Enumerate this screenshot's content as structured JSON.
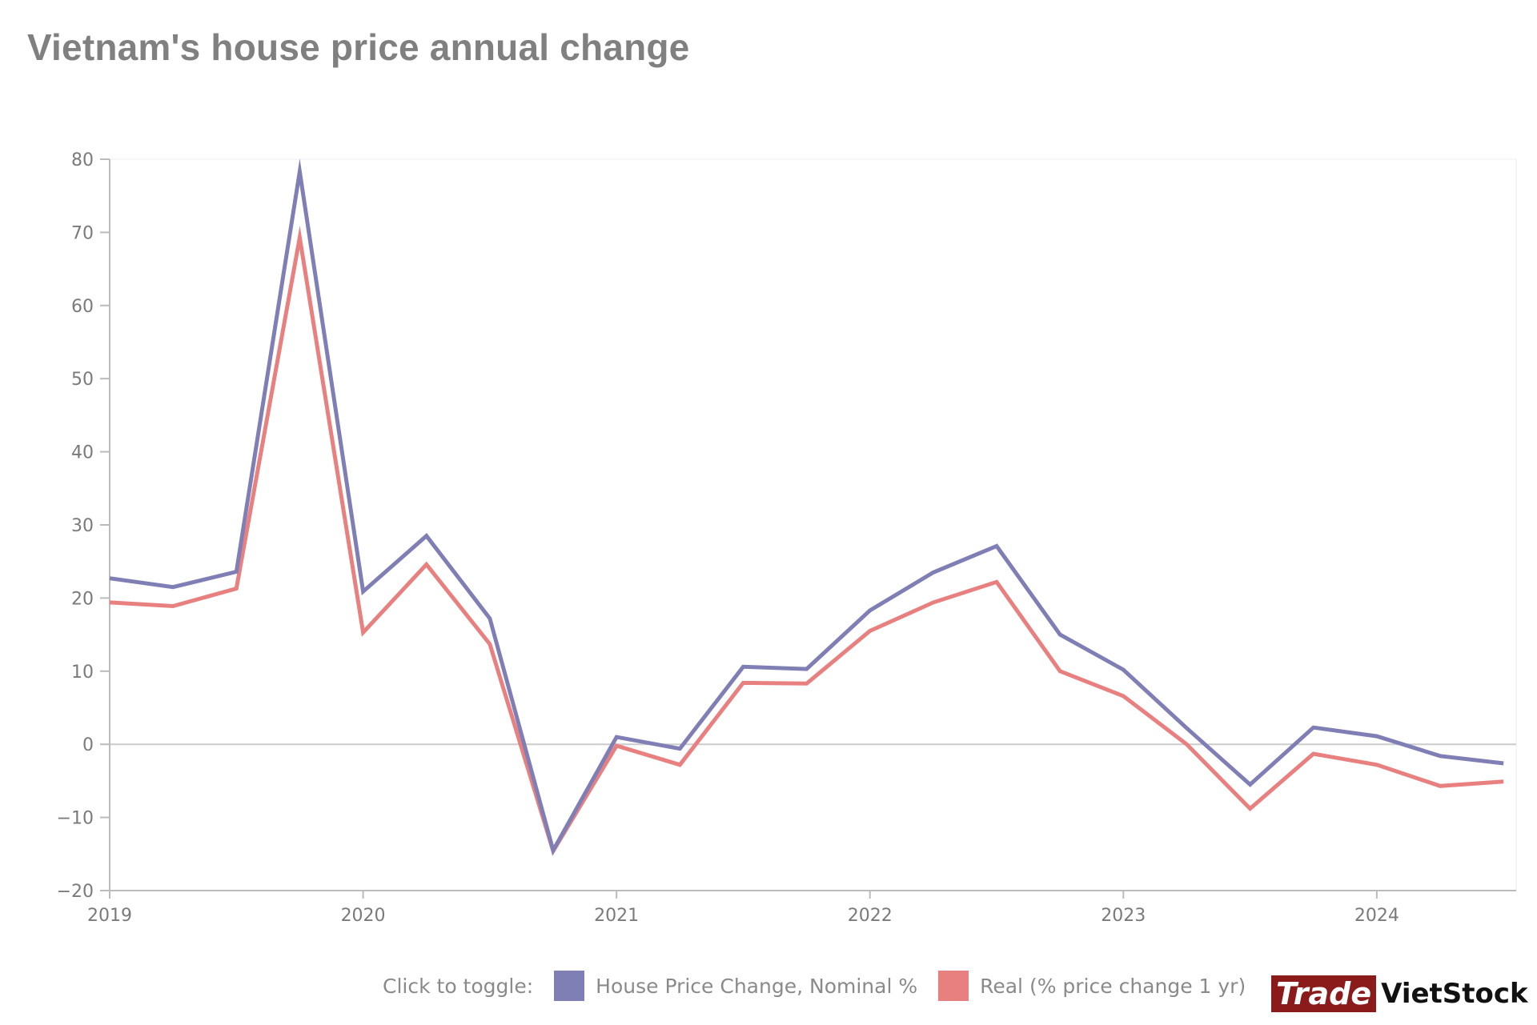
{
  "title": "Vietnam's house price annual change",
  "legend": {
    "hint": "Click to toggle:",
    "items": [
      {
        "label": "House Price Change, Nominal %",
        "color": "#7f7fb5"
      },
      {
        "label": "Real (% price change 1 yr)",
        "color": "#e88080"
      }
    ]
  },
  "logo": {
    "part1": "Trade",
    "part2": "VietStock"
  },
  "chart_data": {
    "type": "line",
    "x_labels": [
      "2019",
      "2020",
      "2021",
      "2022",
      "2023",
      "2024"
    ],
    "x_range": [
      2019.0,
      2024.55
    ],
    "x": [
      2019.0,
      2019.25,
      2019.5,
      2019.75,
      2020.0,
      2020.25,
      2020.5,
      2020.75,
      2021.0,
      2021.25,
      2021.5,
      2021.75,
      2022.0,
      2022.25,
      2022.5,
      2022.75,
      2023.0,
      2023.25,
      2023.5,
      2023.75,
      2024.0,
      2024.25,
      2024.5
    ],
    "ylim": [
      -20,
      80
    ],
    "yticks": [
      80,
      70,
      60,
      50,
      40,
      30,
      20,
      10,
      0,
      -10,
      -20
    ],
    "grid": false,
    "zero_line": true,
    "series": [
      {
        "name": "House Price Change, Nominal %",
        "color": "#7f7fb5",
        "values": [
          22.7,
          21.5,
          23.6,
          78.3,
          20.9,
          28.5,
          17.2,
          -14.5,
          1.0,
          -0.6,
          10.6,
          10.3,
          18.3,
          23.5,
          27.1,
          15.0,
          10.2,
          2.2,
          -5.5,
          2.3,
          1.1,
          -1.6,
          -2.6
        ]
      },
      {
        "name": "Real (% price change 1 yr)",
        "color": "#e88080",
        "values": [
          19.4,
          18.9,
          21.3,
          69.3,
          15.3,
          24.6,
          13.7,
          -14.6,
          -0.2,
          -2.8,
          8.4,
          8.3,
          15.5,
          19.4,
          22.2,
          10.0,
          6.6,
          0.0,
          -8.8,
          -1.3,
          -2.8,
          -5.7,
          -5.1
        ]
      }
    ]
  }
}
